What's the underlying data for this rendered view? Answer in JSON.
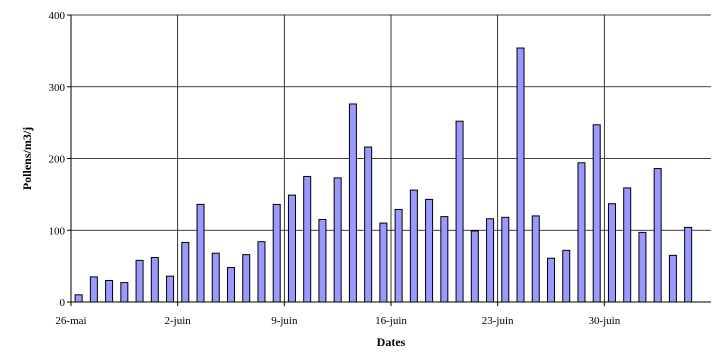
{
  "chart_data": {
    "type": "bar",
    "xlabel": "Dates",
    "ylabel": "Pollens/m3/j",
    "ylim": [
      0,
      400
    ],
    "yticks": [
      0,
      100,
      200,
      300,
      400
    ],
    "grid": true,
    "bar_color": "#9999ff",
    "bar_edge_color": "#000000",
    "x_tick_labels": [
      "26-mai",
      "2-juin",
      "9-juin",
      "16-juin",
      "23-juin",
      "30-juin"
    ],
    "categories": [
      "26-mai",
      "27-mai",
      "28-mai",
      "29-mai",
      "30-mai",
      "31-mai",
      "1-juin",
      "2-juin",
      "3-juin",
      "4-juin",
      "5-juin",
      "6-juin",
      "7-juin",
      "8-juin",
      "9-juin",
      "10-juin",
      "11-juin",
      "12-juin",
      "13-juin",
      "14-juin",
      "15-juin",
      "16-juin",
      "17-juin",
      "18-juin",
      "19-juin",
      "20-juin",
      "21-juin",
      "22-juin",
      "23-juin",
      "24-juin",
      "25-juin",
      "26-juin",
      "27-juin",
      "28-juin",
      "29-juin",
      "30-juin",
      "1-juil",
      "2-juil",
      "3-juil",
      "4-juil",
      "5-juil",
      "6-juil"
    ],
    "values": [
      10,
      35,
      30,
      27,
      58,
      62,
      36,
      83,
      136,
      68,
      48,
      66,
      84,
      136,
      149,
      175,
      115,
      173,
      276,
      216,
      110,
      129,
      156,
      143,
      119,
      252,
      99,
      116,
      118,
      354,
      120,
      61,
      72,
      194,
      247,
      137,
      159,
      97,
      186,
      65,
      104,
      0
    ]
  }
}
